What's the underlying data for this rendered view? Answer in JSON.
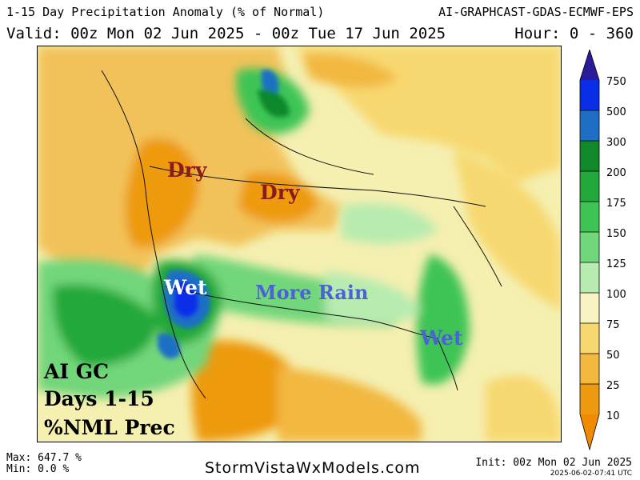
{
  "header": {
    "title": "1-15 Day Precipitation Anomaly (% of Normal)",
    "model": "AI-GRAPHCAST-GDAS-ECMWF-EPS",
    "valid": "Valid: 00z Mon 02 Jun 2025 - 00z Tue 17 Jun 2025",
    "hour": "Hour: 0 - 360"
  },
  "annotations": {
    "dry_northwest": "Dry",
    "dry_plains": "Dry",
    "wet_southwest": "Wet",
    "more_rain": "More Rain",
    "wet_southeast": "Wet"
  },
  "map_label": {
    "line1": "AI GC",
    "line2": "Days 1-15",
    "line3": "%NML Prec"
  },
  "legend": {
    "ticks": [
      "750",
      "500",
      "300",
      "200",
      "175",
      "150",
      "125",
      "100",
      "75",
      "50",
      "25",
      "10"
    ],
    "colors": {
      "above_750": "#2b1a9a",
      "500_750": "#0a2ee8",
      "300_500": "#1e6fc4",
      "200_300": "#11882a",
      "175_200": "#22a83a",
      "150_175": "#3ec455",
      "125_150": "#72d67a",
      "100_125": "#b8ebb0",
      "75_100": "#f7f3c2",
      "50_75": "#f7d870",
      "25_50": "#f2b840",
      "10_25": "#ee9a10",
      "below_10": "#f08a00"
    }
  },
  "footer": {
    "max": "Max: 647.7 %",
    "min": "Min: 0.0 %",
    "site": "StormVistaWxModels.com",
    "init": "Init: 00z Mon 02 Jun 2025",
    "stamp": "2025-06-02-07:41 UTC"
  }
}
